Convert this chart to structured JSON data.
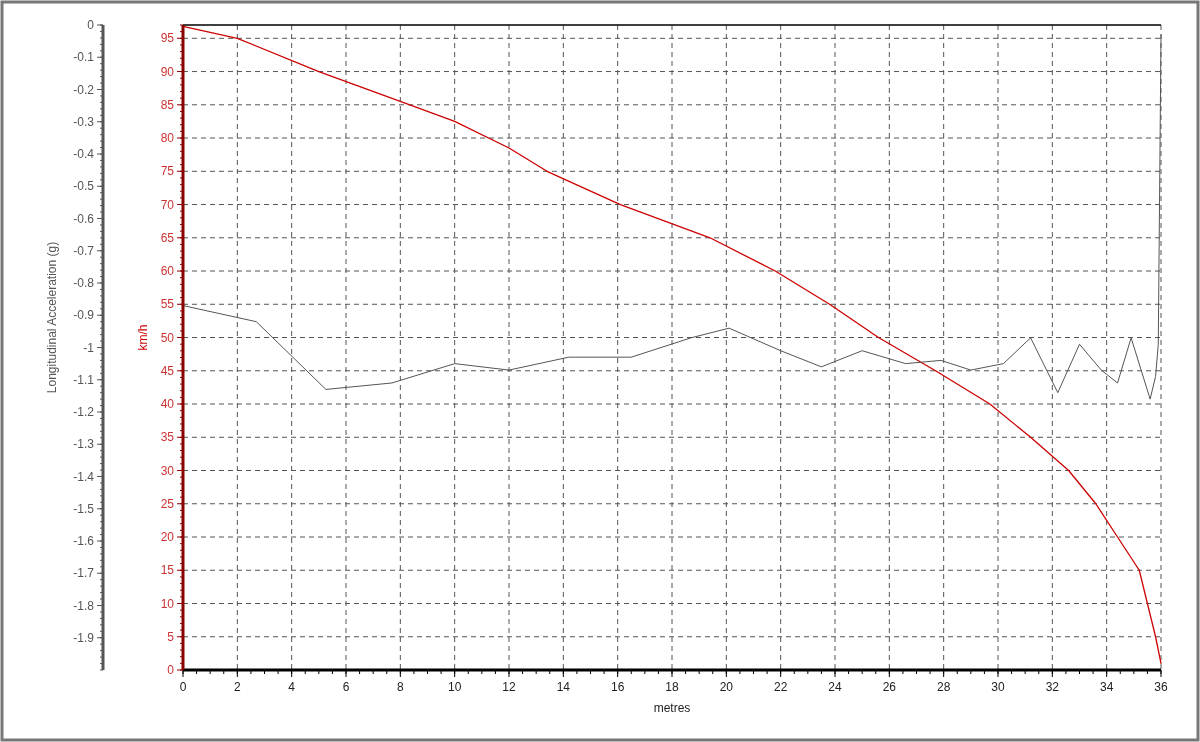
{
  "chart_data": {
    "type": "line",
    "xlabel": "metres",
    "ylabel": "km/h",
    "y2label": "Longitudinal Acceleration (g)",
    "xlim": [
      0,
      36
    ],
    "xticks": [
      0,
      2,
      4,
      6,
      8,
      10,
      12,
      14,
      16,
      18,
      20,
      22,
      24,
      26,
      28,
      30,
      32,
      34,
      36
    ],
    "ylim": [
      0,
      97
    ],
    "yticks": [
      0,
      5,
      10,
      15,
      20,
      25,
      30,
      35,
      40,
      45,
      50,
      55,
      60,
      65,
      70,
      75,
      80,
      85,
      90,
      95
    ],
    "y2lim": [
      -2,
      0
    ],
    "y2ticks": [
      0,
      -0.1,
      -0.2,
      -0.3,
      -0.4,
      -0.5,
      -0.6,
      -0.7,
      -0.8,
      -0.9,
      -1,
      -1.1,
      -1.2,
      -1.3,
      -1.4,
      -1.5,
      -1.6,
      -1.7,
      -1.8,
      -1.9
    ],
    "grid": true,
    "series": [
      {
        "color": "#cc0000",
        "x": [
          0,
          2,
          5,
          8.35,
          10,
          12,
          13.4,
          16.1,
          19.4,
          21.8,
          23.8,
          25.6,
          27.7,
          29.7,
          31.2,
          32.6,
          33.6,
          34.4,
          35.2,
          35.5,
          35.8,
          36
        ],
        "values": [
          96.8,
          95,
          90,
          85,
          82.5,
          78.5,
          75,
          70,
          65,
          60,
          55,
          50,
          45,
          40,
          35,
          30,
          25,
          20,
          15,
          10,
          5,
          1
        ]
      },
      {
        "color": "#555555",
        "axis": "y2",
        "x": [
          0,
          2.7,
          5.26,
          7.69,
          10,
          12,
          14.2,
          16.5,
          18.7,
          20.1,
          22,
          23.5,
          25,
          26.6,
          27.9,
          29,
          30.2,
          31.2,
          32.2,
          33,
          33.8,
          34.4,
          34.9,
          35.6,
          35.8,
          35.9,
          36
        ],
        "values": [
          -0.87,
          -0.92,
          -1.13,
          -1.11,
          -1.05,
          -1.07,
          -1.03,
          -1.03,
          -0.97,
          -0.94,
          -1.01,
          -1.06,
          -1.01,
          -1.05,
          -1.04,
          -1.07,
          -1.05,
          -0.97,
          -1.14,
          -0.99,
          -1.07,
          -1.11,
          -0.97,
          -1.16,
          -1.09,
          -0.99,
          -0.03
        ]
      }
    ]
  }
}
